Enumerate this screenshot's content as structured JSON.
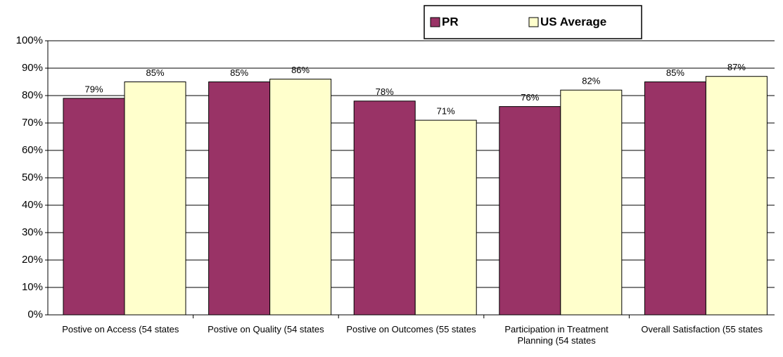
{
  "chart_data": {
    "type": "bar",
    "categories": [
      "Postive on Access (54 states",
      "Postive on Quality (54 states",
      "Postive on Outcomes (55 states",
      "Participation in Treatment Planning (54 states",
      "Overall Satisfaction (55 states"
    ],
    "series": [
      {
        "name": "PR",
        "color": "#993366",
        "values": [
          79,
          85,
          78,
          76,
          85
        ],
        "value_labels": [
          "79%",
          "85%",
          "78%",
          "76%",
          "85%"
        ]
      },
      {
        "name": "US Average",
        "color": "#ffffcc",
        "values": [
          85,
          86,
          71,
          82,
          87
        ],
        "value_labels": [
          "85%",
          "86%",
          "71%",
          "82%",
          "87%"
        ]
      }
    ],
    "ylim": [
      0,
      100
    ],
    "yticks": [
      {
        "value": 0,
        "label": "0%"
      },
      {
        "value": 10,
        "label": "10%"
      },
      {
        "value": 20,
        "label": "20%"
      },
      {
        "value": 30,
        "label": "30%"
      },
      {
        "value": 40,
        "label": "40%"
      },
      {
        "value": 50,
        "label": "50%"
      },
      {
        "value": 60,
        "label": "60%"
      },
      {
        "value": 70,
        "label": "70%"
      },
      {
        "value": 80,
        "label": "80%"
      },
      {
        "value": 90,
        "label": "90%"
      },
      {
        "value": 100,
        "label": "100%"
      }
    ],
    "grid": true,
    "legend": "top-right"
  }
}
